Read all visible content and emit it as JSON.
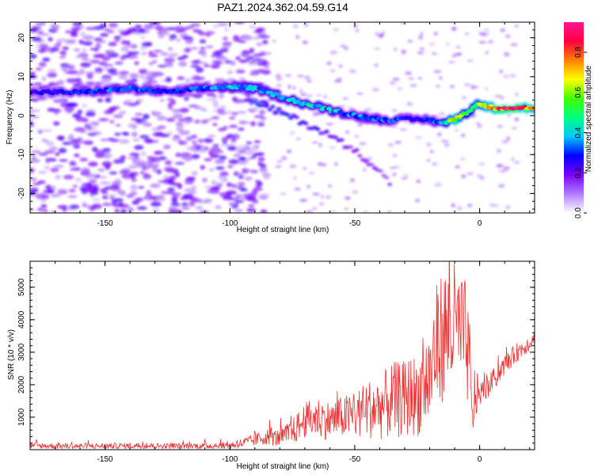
{
  "figure": {
    "title": "PAZ1.2024.362.04.59.G14"
  },
  "chart_data": [
    {
      "type": "heatmap",
      "xlabel": "Height of straight line (km)",
      "ylabel": "Frequency (Hz)",
      "xlim": [
        -180,
        22
      ],
      "ylim": [
        -25,
        24
      ],
      "x_ticks": [
        -150,
        -100,
        -50,
        0
      ],
      "y_ticks": [
        -20,
        -10,
        0,
        10,
        20
      ],
      "colorbar": {
        "label": "Normalized spectral amplitude",
        "range": [
          0,
          0.95
        ],
        "ticks": [
          0.0,
          0.2,
          0.4,
          0.6,
          0.8
        ],
        "tick_labels": [
          "0.0",
          "0.2",
          "0.4",
          "0.6",
          "0.8"
        ],
        "colors": [
          "#ffffff",
          "#b07cff",
          "#7a00ff",
          "#0000ff",
          "#00c8ff",
          "#00ff80",
          "#40ff00",
          "#ffff00",
          "#ff8000",
          "#ff0040",
          "#ff1493"
        ]
      },
      "ridge": {
        "x": [
          -180,
          -160,
          -140,
          -125,
          -110,
          -100,
          -90,
          -80,
          -70,
          -60,
          -50,
          -40,
          -30,
          -20,
          -15,
          -10,
          -5,
          0,
          5,
          10,
          15,
          22
        ],
        "frequency": [
          6,
          6,
          7,
          6,
          7,
          7.5,
          7,
          5,
          3,
          1.5,
          0,
          -1,
          -1,
          -1,
          -2,
          -1,
          1,
          3,
          2,
          2,
          2,
          2
        ],
        "amplitude": [
          0.25,
          0.3,
          0.35,
          0.3,
          0.35,
          0.4,
          0.4,
          0.4,
          0.45,
          0.4,
          0.35,
          0.35,
          0.3,
          0.3,
          0.4,
          0.75,
          0.5,
          0.65,
          0.75,
          0.9,
          0.9,
          0.7
        ]
      },
      "secondary_branch": {
        "x": [
          -90,
          -80,
          -70,
          -60,
          -50,
          -42,
          -35
        ],
        "frequency": [
          3,
          1,
          -2,
          -5,
          -9,
          -13,
          -18
        ],
        "amplitude": [
          0.3,
          0.3,
          0.25,
          0.25,
          0.2,
          0.2,
          0.15
        ]
      },
      "colors": {
        "line": "#000000"
      }
    },
    {
      "type": "line",
      "xlabel": "Height of straight line (km)",
      "ylabel": "SNR (10 * v/v)",
      "xlim": [
        -180,
        22
      ],
      "ylim": [
        0,
        5800
      ],
      "x_ticks": [
        -150,
        -100,
        -50,
        0
      ],
      "y_ticks": [
        1000,
        2000,
        3000,
        4000,
        5000
      ],
      "series": [
        {
          "color": "#ee3333",
          "x": [
            -180,
            -160,
            -140,
            -120,
            -110,
            -100,
            -95,
            -90,
            -85,
            -80,
            -75,
            -70,
            -65,
            -60,
            -55,
            -50,
            -45,
            -40,
            -35,
            -30,
            -27,
            -25,
            -22,
            -20,
            -18,
            -16,
            -14,
            -12,
            -10,
            -8,
            -6,
            -4,
            -3,
            -2,
            0,
            2,
            5,
            10,
            15,
            20,
            22
          ],
          "mean": [
            120,
            110,
            120,
            110,
            120,
            130,
            200,
            300,
            400,
            350,
            550,
            900,
            1000,
            900,
            1000,
            1050,
            1250,
            1300,
            1500,
            1550,
            1700,
            1600,
            2050,
            2200,
            3000,
            3400,
            3600,
            3650,
            3800,
            3700,
            3500,
            2600,
            800,
            1700,
            1750,
            1800,
            2100,
            2600,
            3000,
            3300,
            3400
          ],
          "noise": [
            90,
            90,
            90,
            90,
            100,
            110,
            150,
            200,
            250,
            280,
            400,
            550,
            650,
            600,
            650,
            750,
            900,
            1000,
            1200,
            1200,
            1300,
            1200,
            1500,
            1600,
            1900,
            2000,
            2100,
            2000,
            2000,
            1800,
            1800,
            1500,
            600,
            900,
            400,
            350,
            350,
            300,
            300,
            250,
            250
          ]
        }
      ]
    }
  ]
}
